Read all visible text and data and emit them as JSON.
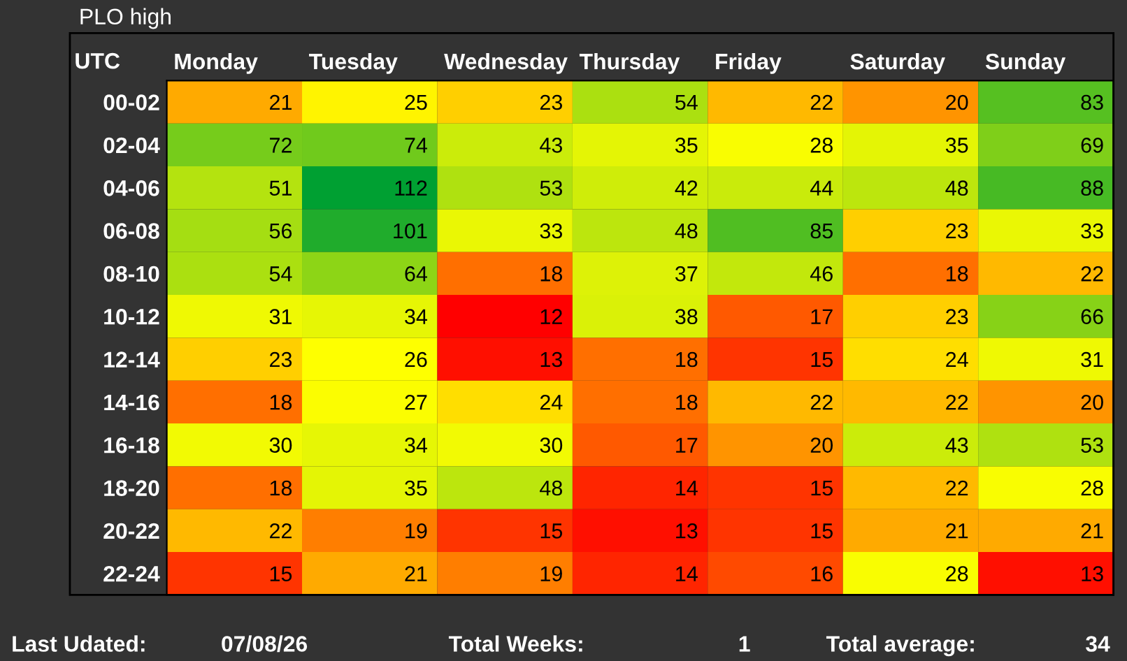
{
  "chart_data": {
    "type": "heatmap",
    "title": "PLO high",
    "ylabel": "UTC",
    "categories": [
      "Monday",
      "Tuesday",
      "Wednesday",
      "Thursday",
      "Friday",
      "Saturday",
      "Sunday"
    ],
    "y_categories": [
      "00-02",
      "02-04",
      "04-06",
      "06-08",
      "08-10",
      "10-12",
      "12-14",
      "14-16",
      "16-18",
      "18-20",
      "20-22",
      "22-24"
    ],
    "cells": [
      [
        21,
        25,
        23,
        54,
        22,
        20,
        83
      ],
      [
        72,
        74,
        43,
        35,
        28,
        35,
        69
      ],
      [
        51,
        112,
        53,
        42,
        44,
        48,
        88
      ],
      [
        56,
        101,
        33,
        48,
        85,
        23,
        33
      ],
      [
        54,
        64,
        18,
        37,
        46,
        18,
        22
      ],
      [
        31,
        34,
        12,
        38,
        17,
        23,
        66
      ],
      [
        23,
        26,
        13,
        18,
        15,
        24,
        31
      ],
      [
        18,
        27,
        24,
        18,
        22,
        22,
        20
      ],
      [
        30,
        34,
        30,
        17,
        20,
        43,
        53
      ],
      [
        18,
        35,
        48,
        14,
        15,
        22,
        28
      ],
      [
        22,
        19,
        15,
        13,
        15,
        21,
        21
      ],
      [
        15,
        21,
        19,
        14,
        16,
        28,
        13
      ]
    ],
    "colors": [
      "#ff0000",
      "#ffff00",
      "#00a032"
    ],
    "data_labels": true,
    "annotations": [
      "Last Udated:",
      "07/08/26",
      "Total Weeks:",
      "1",
      "Total average:",
      "34"
    ]
  }
}
